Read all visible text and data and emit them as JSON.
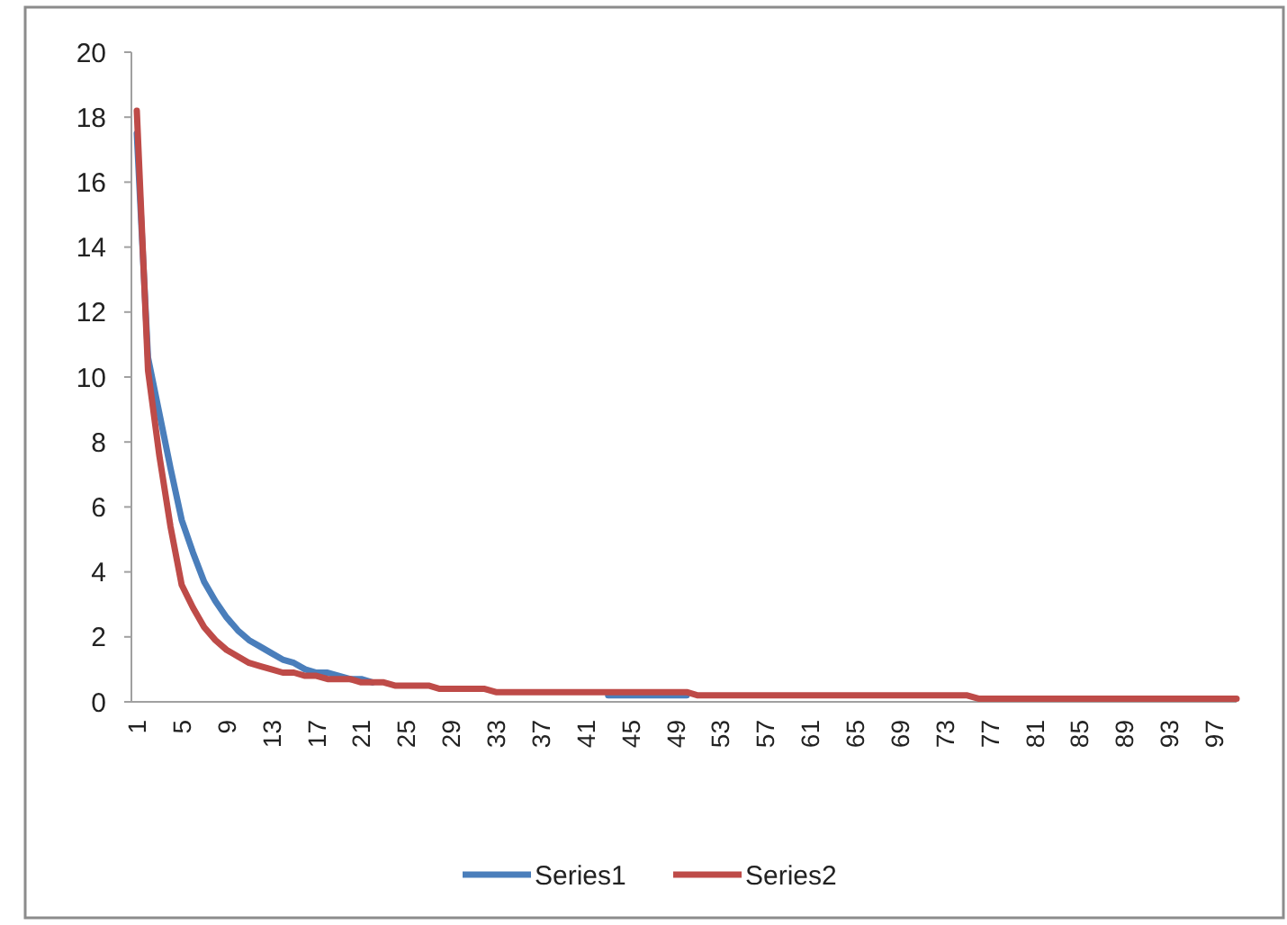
{
  "chart_data": {
    "type": "line",
    "categories": [
      "1",
      null,
      null,
      null,
      "5",
      null,
      null,
      null,
      "9",
      null,
      null,
      null,
      "13",
      null,
      null,
      null,
      "17",
      null,
      null,
      null,
      "21",
      null,
      null,
      null,
      "25",
      null,
      null,
      null,
      "29",
      null,
      null,
      null,
      "33",
      null,
      null,
      null,
      "37",
      null,
      null,
      null,
      "41",
      null,
      null,
      null,
      "45",
      null,
      null,
      null,
      "49",
      null,
      null,
      null,
      "53",
      null,
      null,
      null,
      "57",
      null,
      null,
      null,
      "61",
      null,
      null,
      null,
      "65",
      null,
      null,
      null,
      "69",
      null,
      null,
      null,
      "73",
      null,
      null,
      null,
      "77",
      null,
      null,
      null,
      "81",
      null,
      null,
      null,
      "85",
      null,
      null,
      null,
      "89",
      null,
      null,
      null,
      "93",
      null,
      null,
      null,
      "97",
      null,
      null
    ],
    "series": [
      {
        "name": "Series1",
        "color": "#4a7ebb",
        "values": [
          17.5,
          10.6,
          8.9,
          7.2,
          5.6,
          4.6,
          3.7,
          3.1,
          2.6,
          2.2,
          1.9,
          1.7,
          1.5,
          1.3,
          1.2,
          1.0,
          0.9,
          0.9,
          0.8,
          0.7,
          0.7,
          0.6,
          null,
          null,
          null,
          null,
          null,
          null,
          null,
          null,
          null,
          null,
          null,
          null,
          null,
          null,
          null,
          null,
          null,
          null,
          null,
          null,
          0.2,
          0.2,
          0.2,
          0.2,
          0.2,
          0.2,
          0.2,
          0.2,
          null,
          null,
          null,
          null,
          null,
          null,
          null,
          null,
          null,
          null,
          null,
          null,
          null,
          null,
          null,
          null,
          null,
          null,
          null,
          null,
          null,
          null,
          null,
          null,
          null,
          null,
          null,
          null,
          null,
          null,
          null,
          null,
          null,
          null,
          null,
          null,
          null,
          null,
          null,
          null,
          null,
          null,
          null,
          null,
          null,
          null,
          null,
          null,
          null
        ]
      },
      {
        "name": "Series2",
        "color": "#be4b48",
        "values": [
          18.2,
          10.2,
          7.6,
          5.4,
          3.6,
          2.9,
          2.3,
          1.9,
          1.6,
          1.4,
          1.2,
          1.1,
          1.0,
          0.9,
          0.9,
          0.8,
          0.8,
          0.7,
          0.7,
          0.7,
          0.6,
          0.6,
          0.6,
          0.5,
          0.5,
          0.5,
          0.5,
          0.4,
          0.4,
          0.4,
          0.4,
          0.4,
          0.3,
          0.3,
          0.3,
          0.3,
          0.3,
          0.3,
          0.3,
          0.3,
          0.3,
          0.3,
          0.3,
          0.3,
          0.3,
          0.3,
          0.3,
          0.3,
          0.3,
          0.3,
          0.2,
          0.2,
          0.2,
          0.2,
          0.2,
          0.2,
          0.2,
          0.2,
          0.2,
          0.2,
          0.2,
          0.2,
          0.2,
          0.2,
          0.2,
          0.2,
          0.2,
          0.2,
          0.2,
          0.2,
          0.2,
          0.2,
          0.2,
          0.2,
          0.2,
          0.1,
          0.1,
          0.1,
          0.1,
          0.1,
          0.1,
          0.1,
          0.1,
          0.1,
          0.1,
          0.1,
          0.1,
          0.1,
          0.1,
          0.1,
          0.1,
          0.1,
          0.1,
          0.1,
          0.1,
          0.1,
          0.1,
          0.1,
          0.1
        ]
      }
    ],
    "ylim": [
      0,
      20
    ],
    "yticks": [
      0,
      2,
      4,
      6,
      8,
      10,
      12,
      14,
      16,
      18,
      20
    ],
    "grid": false,
    "legend": "bottom",
    "marker": "none",
    "line_style": "solid"
  }
}
